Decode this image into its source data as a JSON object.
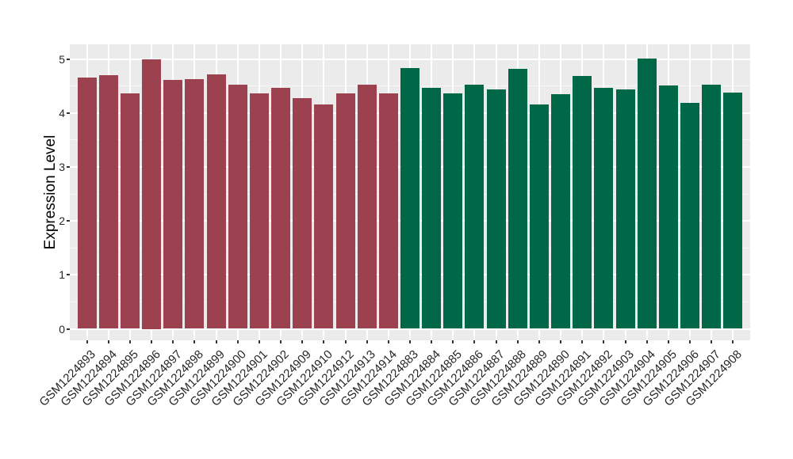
{
  "figure": {
    "background": "#FFFFFF"
  },
  "chart_data": {
    "type": "bar",
    "title": "",
    "xlabel": "",
    "ylabel": "Expression Level",
    "ylim": [
      0,
      5.27
    ],
    "yticks": [
      0,
      1,
      2,
      3,
      4,
      5
    ],
    "yticks_minor": [
      0.5,
      1.5,
      2.5,
      3.5,
      4.5
    ],
    "grid": "on",
    "legend": "none",
    "panel_bg": "#EBEBEB",
    "grid_major_color": "#FFFFFF",
    "grid_minor_color": "#F7F7F7",
    "axis_text_color": "#262626",
    "tick_mark_color": "#333333",
    "groups": [
      {
        "name": "group-1-red",
        "color": "#9C4150"
      },
      {
        "name": "group-2-green",
        "color": "#006847"
      }
    ],
    "bars": [
      {
        "label": "GSM1224893",
        "value": 4.66,
        "group": 0
      },
      {
        "label": "GSM1224894",
        "value": 4.7,
        "group": 0
      },
      {
        "label": "GSM1224895",
        "value": 4.36,
        "group": 0
      },
      {
        "label": "GSM1224896",
        "value": 5.0,
        "group": 0
      },
      {
        "label": "GSM1224897",
        "value": 4.61,
        "group": 0
      },
      {
        "label": "GSM1224898",
        "value": 4.63,
        "group": 0
      },
      {
        "label": "GSM1224899",
        "value": 4.71,
        "group": 0
      },
      {
        "label": "GSM1224900",
        "value": 4.53,
        "group": 0
      },
      {
        "label": "GSM1224901",
        "value": 4.36,
        "group": 0
      },
      {
        "label": "GSM1224902",
        "value": 4.47,
        "group": 0
      },
      {
        "label": "GSM1224909",
        "value": 4.28,
        "group": 0
      },
      {
        "label": "GSM1224910",
        "value": 4.15,
        "group": 0
      },
      {
        "label": "GSM1224912",
        "value": 4.36,
        "group": 0
      },
      {
        "label": "GSM1224913",
        "value": 4.52,
        "group": 0
      },
      {
        "label": "GSM1224914",
        "value": 4.36,
        "group": 0
      },
      {
        "label": "GSM1224883",
        "value": 4.83,
        "group": 1
      },
      {
        "label": "GSM1224884",
        "value": 4.47,
        "group": 1
      },
      {
        "label": "GSM1224885",
        "value": 4.36,
        "group": 1
      },
      {
        "label": "GSM1224886",
        "value": 4.52,
        "group": 1
      },
      {
        "label": "GSM1224887",
        "value": 4.43,
        "group": 1
      },
      {
        "label": "GSM1224888",
        "value": 4.81,
        "group": 1
      },
      {
        "label": "GSM1224889",
        "value": 4.16,
        "group": 1
      },
      {
        "label": "GSM1224890",
        "value": 4.35,
        "group": 1
      },
      {
        "label": "GSM1224891",
        "value": 4.68,
        "group": 1
      },
      {
        "label": "GSM1224892",
        "value": 4.46,
        "group": 1
      },
      {
        "label": "GSM1224903",
        "value": 4.44,
        "group": 1
      },
      {
        "label": "GSM1224904",
        "value": 5.01,
        "group": 1
      },
      {
        "label": "GSM1224905",
        "value": 4.51,
        "group": 1
      },
      {
        "label": "GSM1224906",
        "value": 4.18,
        "group": 1
      },
      {
        "label": "GSM1224907",
        "value": 4.52,
        "group": 1
      },
      {
        "label": "GSM1224908",
        "value": 4.37,
        "group": 1
      }
    ]
  }
}
